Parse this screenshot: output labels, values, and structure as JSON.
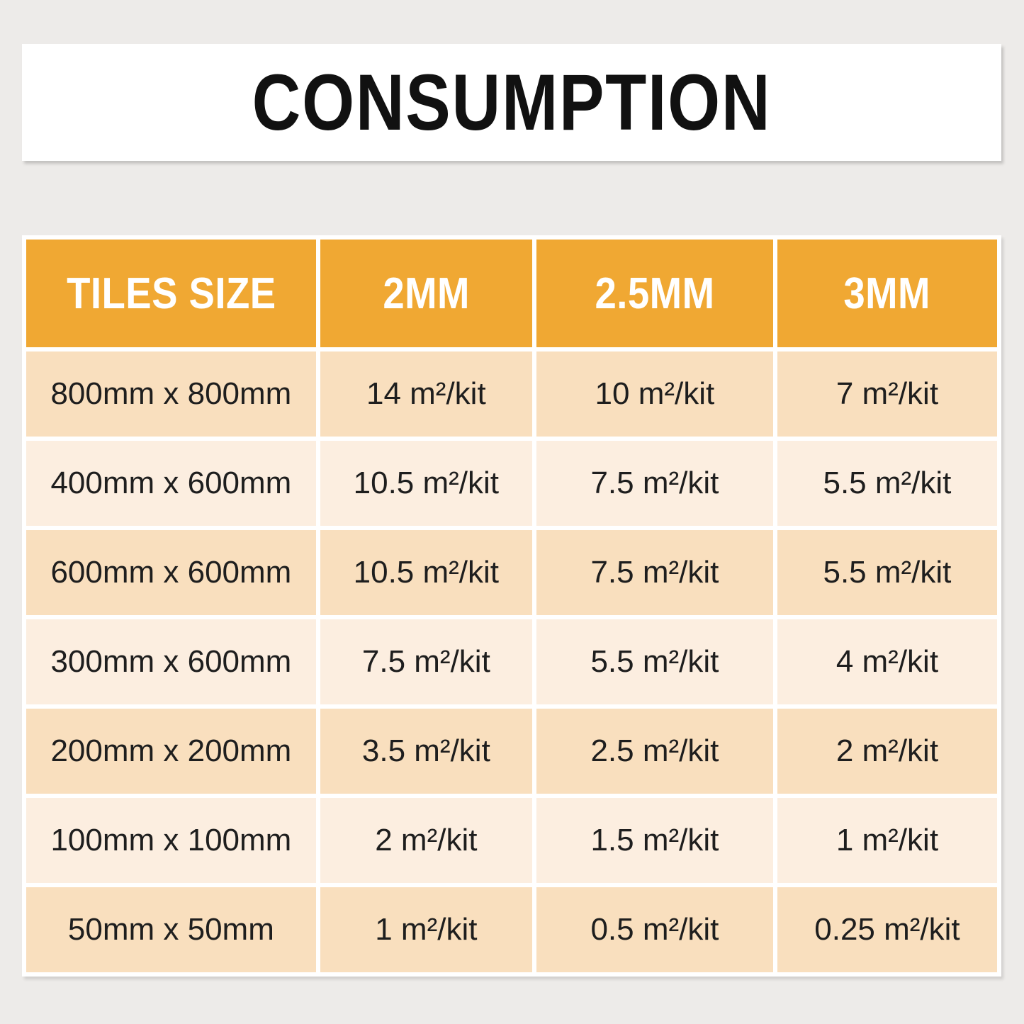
{
  "title": {
    "text": "CONSUMPTION"
  },
  "colors": {
    "page_bg": "#edebe9",
    "banner_bg": "#ffffff",
    "title_text": "#111111",
    "header_bg": "#f0a833",
    "header_text": "#ffffff",
    "row_dark": "#f9dfbe",
    "row_light": "#fceee0",
    "cell_text": "#1e1e1e",
    "grid_line": "#ffffff"
  },
  "table": {
    "headers": [
      "TILES SIZE",
      "2MM",
      "2.5MM",
      "3MM"
    ],
    "rows": [
      {
        "size": "800mm x 800mm",
        "values": [
          "14 m²/kit",
          "10 m²/kit",
          "7 m²/kit"
        ]
      },
      {
        "size": "400mm x 600mm",
        "values": [
          "10.5 m²/kit",
          "7.5 m²/kit",
          "5.5 m²/kit"
        ]
      },
      {
        "size": "600mm x 600mm",
        "values": [
          "10.5 m²/kit",
          "7.5 m²/kit",
          "5.5 m²/kit"
        ]
      },
      {
        "size": "300mm x 600mm",
        "values": [
          "7.5 m²/kit",
          "5.5 m²/kit",
          "4 m²/kit"
        ]
      },
      {
        "size": "200mm x 200mm",
        "values": [
          "3.5 m²/kit",
          "2.5 m²/kit",
          "2 m²/kit"
        ]
      },
      {
        "size": "100mm x 100mm",
        "values": [
          "2 m²/kit",
          "1.5 m²/kit",
          "1 m²/kit"
        ]
      },
      {
        "size": "50mm x 50mm",
        "values": [
          "1 m²/kit",
          "0.5 m²/kit",
          "0.25 m²/kit"
        ]
      }
    ]
  },
  "chart_data": {
    "type": "table",
    "title": "CONSUMPTION",
    "columns": [
      "TILES SIZE",
      "2MM",
      "2.5MM",
      "3MM"
    ],
    "unit": "m²/kit",
    "rows": [
      {
        "tiles_size": "800mm x 800mm",
        "2mm": 14,
        "2.5mm": 10,
        "3mm": 7
      },
      {
        "tiles_size": "400mm x 600mm",
        "2mm": 10.5,
        "2.5mm": 7.5,
        "3mm": 5.5
      },
      {
        "tiles_size": "600mm x 600mm",
        "2mm": 10.5,
        "2.5mm": 7.5,
        "3mm": 5.5
      },
      {
        "tiles_size": "300mm x 600mm",
        "2mm": 7.5,
        "2.5mm": 5.5,
        "3mm": 4
      },
      {
        "tiles_size": "200mm x 200mm",
        "2mm": 3.5,
        "2.5mm": 2.5,
        "3mm": 2
      },
      {
        "tiles_size": "100mm x 100mm",
        "2mm": 2,
        "2.5mm": 1.5,
        "3mm": 1
      },
      {
        "tiles_size": "50mm x 50mm",
        "2mm": 1,
        "2.5mm": 0.5,
        "3mm": 0.25
      }
    ],
    "layout": {
      "header_row_highlighted": true,
      "alternating_row_shading": [
        "dark",
        "light"
      ],
      "gridlines": "white"
    }
  }
}
